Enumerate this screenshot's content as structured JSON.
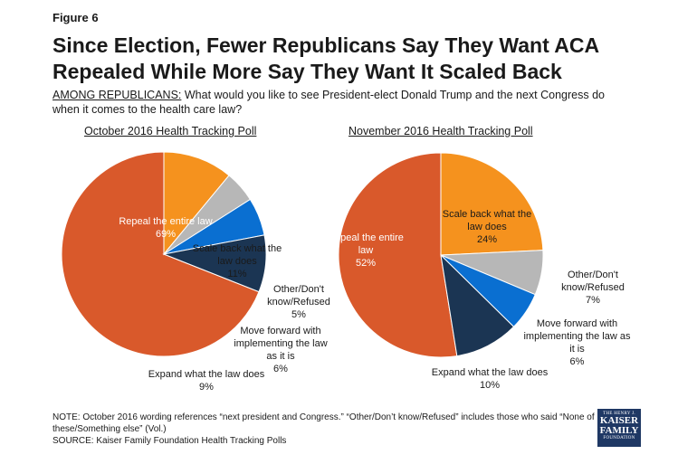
{
  "figure_label": "Figure 6",
  "title": "Since Election, Fewer Republicans Say They Want ACA Repealed While More Say They Want It Scaled Back",
  "subtitle": {
    "lead": "AMONG REPUBLICANS:",
    "question": " What would you like to see President-elect Donald Trump and the next Congress do when it comes to the health care law?"
  },
  "note": "NOTE: October 2016 wording references “next president and Congress.” “Other/Don’t know/Refused” includes those who said “None of these/Something else” (Vol.)",
  "source": "SOURCE: Kaiser Family Foundation Health Tracking Polls",
  "logo": {
    "line1": "THE HENRY J.",
    "line2a": "KAISER",
    "line2b": "FAMILY",
    "line3": "FOUNDATION"
  },
  "colors": {
    "repeal": "#d9592b",
    "scale_back": "#f5921e",
    "other": "#b7b7b7",
    "move_forward": "#0a6fd1",
    "expand": "#1b3553"
  },
  "chart_data": [
    {
      "type": "pie",
      "title": "October 2016 Health Tracking Poll",
      "slices": [
        {
          "label": "Repeal the entire law",
          "value": 69,
          "display": "69%",
          "color_key": "repeal"
        },
        {
          "label": "Scale back what the law does",
          "value": 11,
          "display": "11%",
          "color_key": "scale_back"
        },
        {
          "label": "Other/Don't know/Refused",
          "value": 5,
          "display": "5%",
          "color_key": "other"
        },
        {
          "label": "Move forward with implementing the law as it is",
          "value": 6,
          "display": "6%",
          "color_key": "move_forward"
        },
        {
          "label": "Expand what the law does",
          "value": 9,
          "display": "9%",
          "color_key": "expand"
        }
      ]
    },
    {
      "type": "pie",
      "title": "November 2016 Health Tracking Poll",
      "slices": [
        {
          "label": "Repeal the entire law",
          "value": 52,
          "display": "52%",
          "color_key": "repeal"
        },
        {
          "label": "Scale back what the law does",
          "value": 24,
          "display": "24%",
          "color_key": "scale_back"
        },
        {
          "label": "Other/Don't know/Refused",
          "value": 7,
          "display": "7%",
          "color_key": "other"
        },
        {
          "label": "Move forward with implementing the law as it is",
          "value": 6,
          "display": "6%",
          "color_key": "move_forward"
        },
        {
          "label": "Expand what the law does",
          "value": 10,
          "display": "10%",
          "color_key": "expand"
        }
      ]
    }
  ]
}
